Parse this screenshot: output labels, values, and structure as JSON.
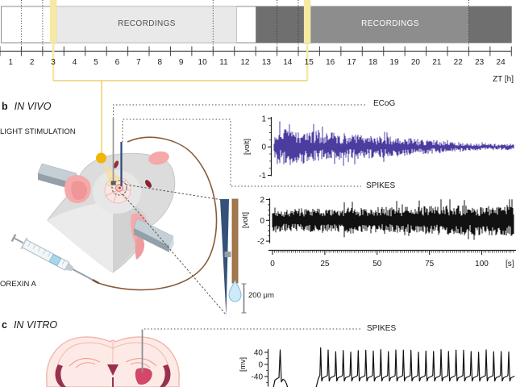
{
  "figure": {
    "panel_b_label": "b",
    "panel_b_title": "IN VIVO",
    "panel_c_label": "c",
    "panel_c_title": "IN VITRO"
  },
  "timeline": {
    "recordings_label_light": "RECORDINGS",
    "recordings_label_dark": "RECORDINGS",
    "axis_label": "ZT [h]",
    "hours": [
      1,
      2,
      3,
      4,
      5,
      6,
      7,
      8,
      9,
      10,
      11,
      12,
      13,
      14,
      15,
      16,
      17,
      18,
      19,
      20,
      21,
      22,
      23,
      24
    ],
    "light_phase": {
      "zt_start": 0,
      "zt_end": 12,
      "color": "#ffffff"
    },
    "dark_phase": {
      "zt_start": 12,
      "zt_end": 24,
      "color": "#6f6f6f"
    },
    "recording_windows": [
      {
        "phase": "light",
        "zt_start": 2.65,
        "zt_end": 11.1,
        "color": "#e9e9e9"
      },
      {
        "phase": "dark",
        "zt_start": 14.57,
        "zt_end": 22.0,
        "color": "#8d8d8d"
      }
    ],
    "light_stimulation_marks_zt": [
      2.5,
      14.42
    ],
    "stimulation_mark_width_h": 0.32,
    "dotted_guides_zt": [
      1,
      2,
      10,
      13,
      14,
      22
    ],
    "stim_color": "#f6e9a2",
    "bracket_color": "#ecd06c"
  },
  "panel_b": {
    "light_stimulation_label": "LIGHT STIMULATION",
    "orexin_label": "OREXIN A",
    "scale_bar_label": "200 μm",
    "ecog_label": "ECoG",
    "spikes_label": "SPIKES",
    "led_color": "#f1b605",
    "electrode_color": "#335179",
    "cannula_color": "#a3784d"
  },
  "panel_c": {
    "spikes_label": "SPIKES",
    "target_region_color": "#d5476a"
  },
  "chart_data": [
    {
      "id": "ecog",
      "type": "line",
      "title": "ECoG",
      "ylabel": "[volt]",
      "yticks": [
        1,
        0,
        -1
      ],
      "ylim": [
        -1.2,
        1.2
      ],
      "x_range_s": [
        0,
        112
      ],
      "signal": "broadband ECoG noise, envelope decaying from about ±0.6 V to ±0.1 V",
      "amp_start_v": 0.6,
      "amp_end_v": 0.1,
      "color": "#4b3da0",
      "grid": false,
      "legend": "none"
    },
    {
      "id": "spikes_in_vivo",
      "type": "line",
      "title": "SPIKES",
      "ylabel": "[volt]",
      "xlabel": "[s]",
      "yticks": [
        2,
        0,
        -2
      ],
      "ylim": [
        -2.4,
        2.4
      ],
      "xticks": [
        0,
        25,
        50,
        75,
        100
      ],
      "x_range_s": [
        0,
        112
      ],
      "signal": "dense multi-unit spiking, roughly constant envelope about ±1.2 V",
      "amp_v": 1.2,
      "color": "#111111",
      "grid": false,
      "legend": "none"
    },
    {
      "id": "spikes_in_vitro",
      "type": "line",
      "title": "SPIKES",
      "ylabel": "[mv]",
      "yticks": [
        40,
        0,
        -40
      ],
      "ylim": [
        -75,
        52
      ],
      "signal": "patch-clamp trace: one single spike, silent gap, then tonic firing",
      "baseline_mv": -45,
      "peak_mv": 45,
      "first_spikes": 1,
      "tonic_spikes": 26,
      "color": "#111111",
      "grid": false,
      "legend": "none"
    }
  ]
}
